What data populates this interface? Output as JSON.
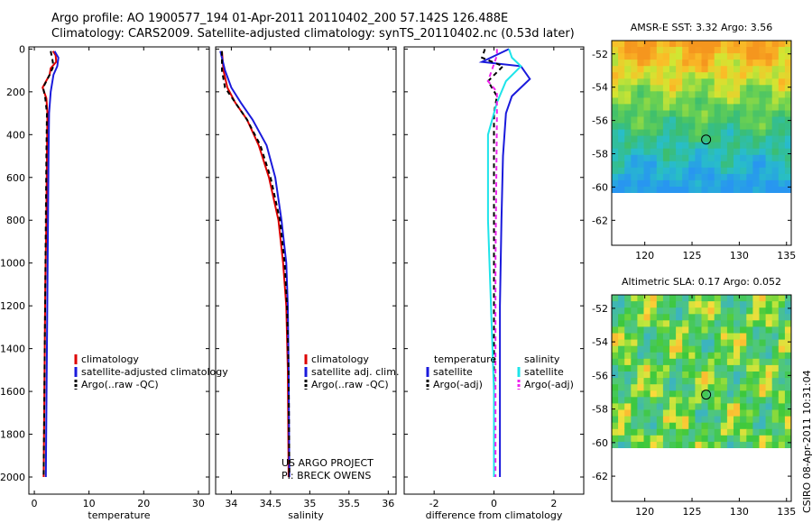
{
  "titles": {
    "line1": "Argo profile: AO 1900577_194 01-Apr-2011 20110402_200 57.142S 126.488E",
    "line2": "Climatology: CARS2009. Satellite-adjusted climatology: synTS_20110402.nc (0.53d later)"
  },
  "stamp": "CSIRO 08-Apr-2011 10:31:04",
  "colors": {
    "red": "#dd0000",
    "blue": "#1a1adc",
    "black": "#000000",
    "cyan": "#1ee4ea",
    "magenta": "#ee22ee"
  },
  "chart_data": [
    {
      "type": "line",
      "name": "temperature-profile",
      "xlabel": "temperature",
      "xlim": [
        -1,
        32
      ],
      "xticks": [
        0,
        10,
        20,
        30
      ],
      "ylim": [
        2080,
        -10
      ],
      "yticks": [
        0,
        200,
        400,
        600,
        800,
        1000,
        1200,
        1400,
        1600,
        1800,
        2000
      ],
      "legend": [
        "climatology",
        "satellite-adjusted climatology",
        "Argo(..raw -QC)"
      ],
      "series": [
        {
          "name": "climatology",
          "color": "red",
          "dash": "",
          "points": [
            [
              3.4,
              10
            ],
            [
              3.9,
              30
            ],
            [
              4.0,
              60
            ],
            [
              3.0,
              90
            ],
            [
              2.8,
              120
            ],
            [
              1.5,
              180
            ],
            [
              2.2,
              230
            ],
            [
              2.4,
              300
            ],
            [
              2.3,
              500
            ],
            [
              2.2,
              800
            ],
            [
              2.0,
              1100
            ],
            [
              1.9,
              1400
            ],
            [
              1.8,
              1700
            ],
            [
              1.7,
              2000
            ]
          ]
        },
        {
          "name": "satellite",
          "color": "blue",
          "dash": "",
          "points": [
            [
              3.7,
              10
            ],
            [
              4.4,
              40
            ],
            [
              4.2,
              80
            ],
            [
              3.5,
              120
            ],
            [
              3.0,
              200
            ],
            [
              2.7,
              300
            ],
            [
              2.6,
              500
            ],
            [
              2.5,
              800
            ],
            [
              2.4,
              1100
            ],
            [
              2.3,
              1400
            ],
            [
              2.2,
              1700
            ],
            [
              2.1,
              2000
            ]
          ]
        },
        {
          "name": "argo",
          "color": "black",
          "dash": "5,4",
          "points": [
            [
              3.0,
              10
            ],
            [
              3.3,
              50
            ],
            [
              3.5,
              80
            ],
            [
              2.8,
              120
            ],
            [
              1.6,
              180
            ],
            [
              2.0,
              230
            ],
            [
              2.3,
              300
            ],
            [
              2.2,
              500
            ],
            [
              2.1,
              800
            ],
            [
              2.0,
              1100
            ],
            [
              1.9,
              1400
            ],
            [
              1.8,
              1700
            ],
            [
              1.7,
              1990
            ]
          ]
        }
      ]
    },
    {
      "type": "line",
      "name": "salinity-profile",
      "xlabel": "salinity",
      "xlim": [
        33.8,
        36.1
      ],
      "xticks": [
        "34",
        "34.5",
        "35",
        "35.5",
        "36"
      ],
      "ylim": [
        2080,
        -10
      ],
      "yticks": [],
      "legend": [
        "climatology",
        "satellite adj. clim.",
        "Argo(..raw -QC)"
      ],
      "annotation": [
        "US ARGO PROJECT",
        "PI: BRECK OWENS"
      ],
      "series": [
        {
          "name": "climatology",
          "color": "red",
          "dash": "",
          "points": [
            [
              33.88,
              10
            ],
            [
              33.9,
              100
            ],
            [
              33.95,
              180
            ],
            [
              34.05,
              250
            ],
            [
              34.2,
              330
            ],
            [
              34.35,
              450
            ],
            [
              34.48,
              600
            ],
            [
              34.6,
              800
            ],
            [
              34.66,
              1000
            ],
            [
              34.7,
              1200
            ],
            [
              34.72,
              1500
            ],
            [
              34.73,
              2000
            ]
          ]
        },
        {
          "name": "satellite",
          "color": "blue",
          "dash": "",
          "points": [
            [
              33.86,
              10
            ],
            [
              33.92,
              100
            ],
            [
              34.0,
              180
            ],
            [
              34.12,
              250
            ],
            [
              34.27,
              330
            ],
            [
              34.45,
              450
            ],
            [
              34.56,
              600
            ],
            [
              34.64,
              800
            ],
            [
              34.7,
              1000
            ],
            [
              34.72,
              1200
            ],
            [
              34.73,
              1500
            ],
            [
              34.74,
              2000
            ]
          ]
        },
        {
          "name": "argo",
          "color": "black",
          "dash": "5,4",
          "points": [
            [
              33.88,
              10
            ],
            [
              33.88,
              100
            ],
            [
              33.92,
              180
            ],
            [
              34.05,
              250
            ],
            [
              34.2,
              330
            ],
            [
              34.37,
              450
            ],
            [
              34.5,
              600
            ],
            [
              34.62,
              800
            ],
            [
              34.68,
              1000
            ],
            [
              34.71,
              1200
            ],
            [
              34.73,
              1500
            ],
            [
              34.74,
              1990
            ]
          ]
        }
      ]
    },
    {
      "type": "line",
      "name": "difference-profile",
      "xlabel": "difference from climatology",
      "xlim": [
        -3,
        3
      ],
      "xticks": [
        -2,
        0,
        2
      ],
      "ylim": [
        2080,
        -10
      ],
      "yticks": [],
      "legend_left_title": "temperature",
      "legend_right_title": "salinity",
      "legend_left": [
        "satellite",
        "Argo(-adj)"
      ],
      "legend_right": [
        "satellite",
        "Argo(-adj)"
      ],
      "series": [
        {
          "name": "temp-satellite",
          "color": "blue",
          "dash": "",
          "points": [
            [
              0.5,
              0
            ],
            [
              -0.4,
              60
            ],
            [
              0.9,
              80
            ],
            [
              1.2,
              140
            ],
            [
              0.6,
              220
            ],
            [
              0.4,
              300
            ],
            [
              0.3,
              500
            ],
            [
              0.25,
              800
            ],
            [
              0.2,
              1200
            ],
            [
              0.2,
              1600
            ],
            [
              0.2,
              2000
            ]
          ]
        },
        {
          "name": "temp-argo",
          "color": "black",
          "dash": "5,4",
          "points": [
            [
              -0.3,
              0
            ],
            [
              -0.4,
              40
            ],
            [
              0.3,
              80
            ],
            [
              -0.2,
              150
            ],
            [
              0.1,
              220
            ],
            [
              0.0,
              300
            ],
            [
              0.0,
              1000
            ],
            [
              0.0,
              2000
            ]
          ]
        },
        {
          "name": "sal-satellite",
          "color": "cyan",
          "dash": "",
          "points": [
            [
              0.5,
              0
            ],
            [
              0.6,
              40
            ],
            [
              0.9,
              80
            ],
            [
              0.4,
              150
            ],
            [
              0.1,
              250
            ],
            [
              -0.2,
              400
            ],
            [
              -0.2,
              800
            ],
            [
              -0.1,
              1200
            ],
            [
              0.0,
              1600
            ],
            [
              0.0,
              2000
            ]
          ]
        },
        {
          "name": "sal-argo",
          "color": "magenta",
          "dash": "5,4",
          "points": [
            [
              0.1,
              0
            ],
            [
              0.1,
              30
            ],
            [
              -0.2,
              150
            ],
            [
              0.1,
              200
            ],
            [
              0.1,
              300
            ],
            [
              0.05,
              1000
            ],
            [
              0.05,
              2000
            ]
          ]
        }
      ]
    },
    {
      "type": "heatmap",
      "name": "sst-map",
      "title": "AMSR-E SST: 3.32  Argo: 3.56",
      "xlim": [
        116.5,
        135.5
      ],
      "ylim": [
        -63.5,
        -51.2
      ],
      "xticks": [
        120,
        125,
        130,
        135
      ],
      "yticks": [
        -52,
        -54,
        -56,
        -58,
        -60,
        -62
      ],
      "data_extent_lat": [
        -60,
        -51.2
      ],
      "float_position": {
        "lon": 126.488,
        "lat": -57.142
      }
    },
    {
      "type": "heatmap",
      "name": "sla-map",
      "title": "Altimetric SLA: 0.17  Argo: 0.052",
      "xlim": [
        116.5,
        135.5
      ],
      "ylim": [
        -63.5,
        -51.2
      ],
      "xticks": [
        120,
        125,
        130,
        135
      ],
      "yticks": [
        -52,
        -54,
        -56,
        -58,
        -60,
        -62
      ],
      "data_extent_lat": [
        -60,
        -51.2
      ],
      "float_position": {
        "lon": 126.488,
        "lat": -57.142
      }
    }
  ]
}
